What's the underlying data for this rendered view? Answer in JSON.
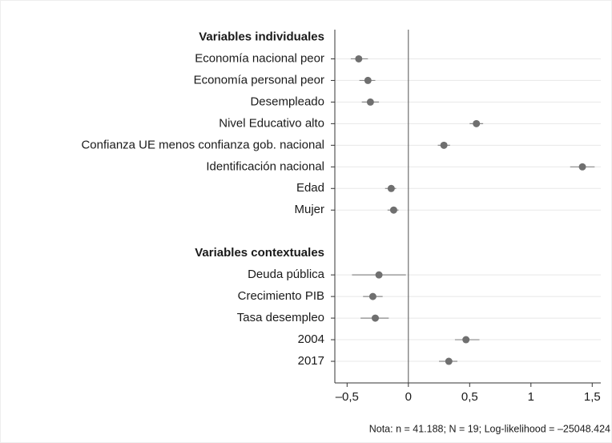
{
  "chart_data": {
    "type": "coefplot",
    "groups": [
      {
        "name": "Variables individuales",
        "categories": [
          "Economía nacional peor",
          "Economía personal peor",
          "Desempleado",
          "Nivel Educativo alto",
          "Confianza UE menos confianza gob. nacional",
          "Identificación nacional",
          "Edad",
          "Mujer"
        ],
        "values": [
          -0.405,
          -0.33,
          -0.31,
          0.555,
          0.29,
          1.42,
          -0.14,
          -0.12
        ],
        "lower": [
          -0.47,
          -0.4,
          -0.38,
          0.5,
          0.24,
          1.32,
          -0.19,
          -0.17
        ],
        "upper": [
          -0.33,
          -0.27,
          -0.24,
          0.61,
          0.34,
          1.52,
          -0.1,
          -0.08
        ]
      },
      {
        "name": "Variables contextuales",
        "categories": [
          "Deuda pública",
          "Crecimiento PIB",
          "Tasa desempleo",
          "2004",
          "2017"
        ],
        "values": [
          -0.24,
          -0.29,
          -0.27,
          0.47,
          0.33
        ],
        "lower": [
          -0.46,
          -0.37,
          -0.39,
          0.38,
          0.25
        ],
        "upper": [
          -0.02,
          -0.21,
          -0.16,
          0.58,
          0.4
        ]
      }
    ],
    "xlim": [
      -0.6,
      1.57
    ],
    "xticks": [
      {
        "value": -0.5,
        "label": "–0,5"
      },
      0,
      {
        "value": 0.5,
        "label": "0,5"
      },
      1,
      {
        "value": 1.5,
        "label": "1,5"
      }
    ],
    "reference_line": 0,
    "grid": true,
    "color": "#6f6f6f",
    "ci_color": "#8a8a8a",
    "note": "Nota: n = 41.188; N = 19; Log-likelihood = –25048.424"
  }
}
